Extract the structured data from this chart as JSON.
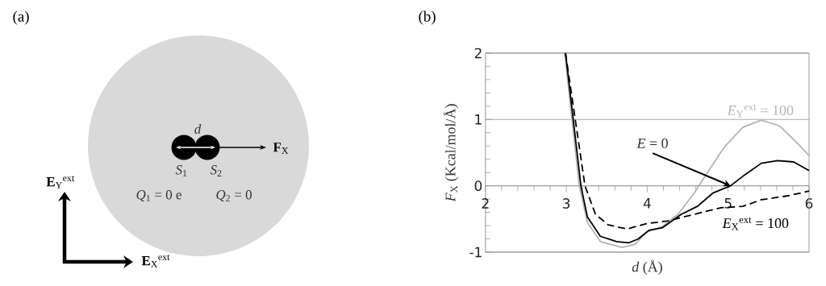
{
  "chart_data": [
    {
      "type": "other",
      "title": "(a)",
      "annotations": [
        "*d*",
        "**F**$_{X}$",
        "*S*$_{1}$",
        "*S*$_{2}$",
        "*Q*$_{1}$ = 0 e",
        "*Q*$_{2}$ = 0",
        "**E**$_{Y}$$^{ext}$",
        "**E**$_{X}$$^{ext}$"
      ]
    },
    {
      "type": "line",
      "title": "(b)",
      "xlabel": "*d* (Å)",
      "ylabel": "*F*$_{X}$ (Kcal/mol/Å)",
      "xlim": [
        2,
        6
      ],
      "ylim": [
        -1,
        2
      ],
      "xticks": [
        2,
        3,
        4,
        5,
        6
      ],
      "yticks": [
        -1,
        0,
        1,
        2
      ],
      "grid": "y",
      "annotations": [
        {
          "text": "*E* = 0",
          "x": 5.03,
          "y": 0.0
        }
      ],
      "series": [
        {
          "name": "*E*$_{Y}$$^{ext}$ = 100",
          "color": "#b3b3b3",
          "line_style": "solid",
          "x": [
            2.98,
            3.16,
            3.26,
            3.42,
            3.69,
            3.85,
            3.99,
            4.19,
            4.38,
            4.58,
            4.75,
            4.95,
            5.18,
            5.41,
            5.64,
            5.84,
            6.0
          ],
          "values": [
            2.0,
            0.0,
            -0.55,
            -0.84,
            -0.93,
            -0.88,
            -0.7,
            -0.61,
            -0.43,
            -0.11,
            0.21,
            0.58,
            0.88,
            0.99,
            0.9,
            0.66,
            0.46
          ]
        },
        {
          "color": "#000000",
          "line_style": "solid",
          "x": [
            2.99,
            3.18,
            3.26,
            3.42,
            3.62,
            3.77,
            3.89,
            4.02,
            4.19,
            4.42,
            4.62,
            4.81,
            5.03,
            5.21,
            5.41,
            5.61,
            5.81,
            6.0
          ],
          "values": [
            2.0,
            0.0,
            -0.47,
            -0.76,
            -0.84,
            -0.86,
            -0.8,
            -0.67,
            -0.63,
            -0.43,
            -0.31,
            -0.11,
            0.0,
            0.17,
            0.34,
            0.38,
            0.36,
            0.23
          ]
        },
        {
          "name": "*E*$_{X}$$^{ext}$ = 100",
          "color": "#000000",
          "line_style": "dashed",
          "x": [
            2.99,
            3.23,
            3.36,
            3.52,
            3.75,
            3.99,
            4.25,
            4.58,
            4.91,
            5.18,
            5.41,
            5.74,
            6.0
          ],
          "values": [
            2.0,
            0.0,
            -0.43,
            -0.59,
            -0.65,
            -0.57,
            -0.53,
            -0.43,
            -0.33,
            -0.31,
            -0.21,
            -0.15,
            -0.08
          ]
        }
      ]
    }
  ]
}
